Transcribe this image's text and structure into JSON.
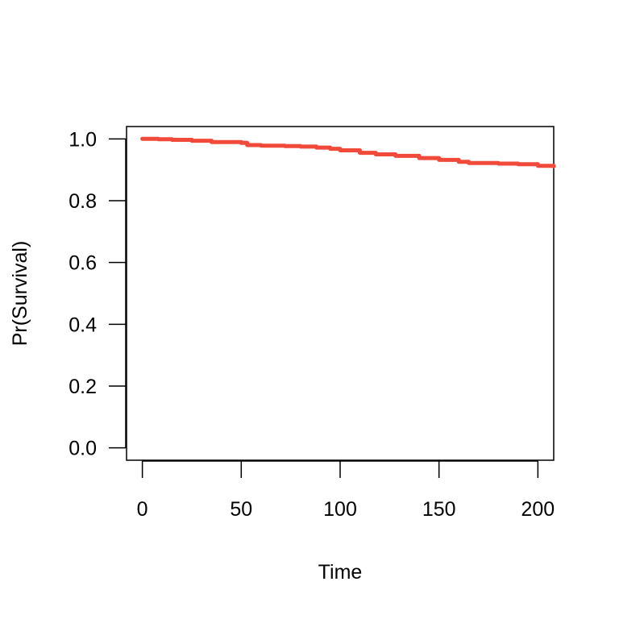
{
  "chart_data": {
    "type": "line",
    "title": "",
    "xlabel": "Time",
    "ylabel": "Pr(Survival)",
    "xlim": [
      -8,
      208
    ],
    "ylim": [
      -0.04,
      1.04
    ],
    "xticks": [
      0,
      50,
      100,
      150,
      200
    ],
    "xtick_labels": [
      "0",
      "50",
      "100",
      "150",
      "200"
    ],
    "yticks": [
      0.0,
      0.2,
      0.4,
      0.6,
      0.8,
      1.0
    ],
    "ytick_labels": [
      "0.0",
      "0.2",
      "0.4",
      "0.6",
      "0.8",
      "1.0"
    ],
    "grid": false,
    "series": [
      {
        "color": "#f24a3a",
        "step": true,
        "x": [
          0,
          8,
          15,
          25,
          35,
          50,
          53,
          60,
          72,
          80,
          88,
          95,
          100,
          110,
          118,
          128,
          140,
          150,
          160,
          165,
          180,
          190,
          200,
          208
        ],
        "y": [
          1.0,
          0.999,
          0.997,
          0.994,
          0.99,
          0.987,
          0.98,
          0.978,
          0.977,
          0.975,
          0.972,
          0.968,
          0.963,
          0.955,
          0.95,
          0.945,
          0.938,
          0.932,
          0.926,
          0.922,
          0.92,
          0.918,
          0.913,
          0.911
        ]
      }
    ]
  }
}
